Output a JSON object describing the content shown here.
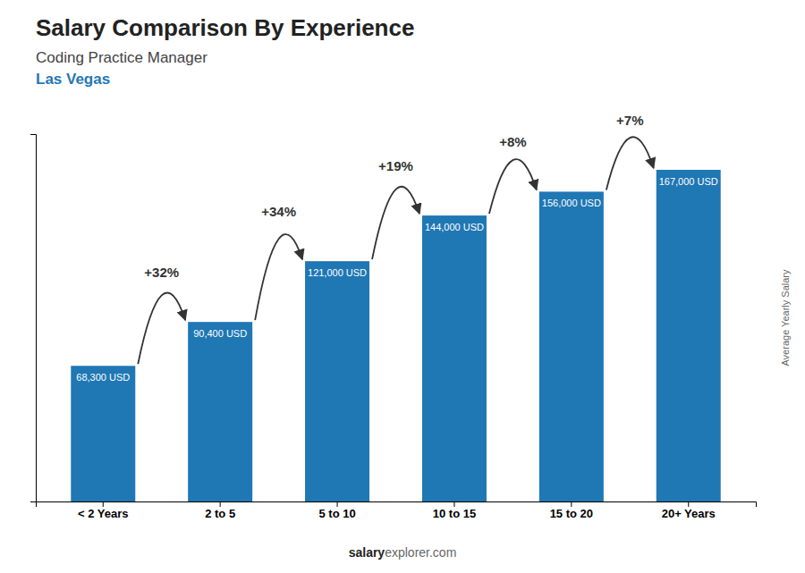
{
  "chart_data": {
    "type": "bar",
    "title": "Salary Comparison By Experience",
    "subtitle": "Coding Practice Manager",
    "city": "Las Vegas",
    "ylabel": "Average Yearly Salary",
    "footer": [
      "salary",
      "explorer.com"
    ],
    "categories": [
      "< 2 Years",
      "2 to 5",
      "5 to 10",
      "10 to 15",
      "15 to 20",
      "20+ Years"
    ],
    "values": [
      68300,
      90400,
      121000,
      144000,
      156000,
      167000
    ],
    "value_labels": [
      "68,300 USD",
      "90,400 USD",
      "121,000 USD",
      "144,000 USD",
      "156,000 USD",
      "167,000 USD"
    ],
    "data_labels": true,
    "annotations": [
      "+32%",
      "+34%",
      "+19%",
      "+8%",
      "+7%"
    ],
    "ylim": [
      0,
      185000
    ],
    "tick_labels": "x"
  }
}
